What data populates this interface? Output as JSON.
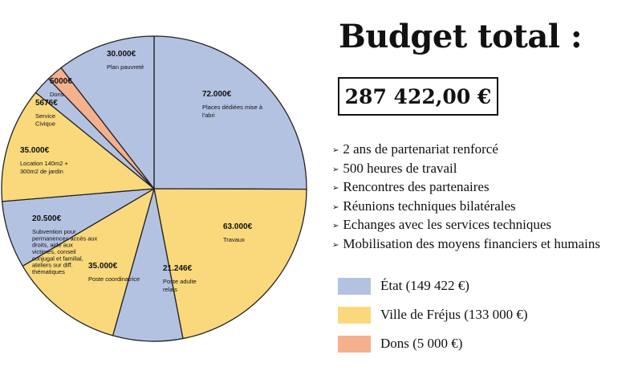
{
  "header": {
    "title": "Budget total :",
    "total": "287 422,00 €"
  },
  "bullets": [
    "2 ans de partenariat renforcé",
    "500 heures de travail",
    "Rencontres des partenaires",
    "Réunions techniques bilatérales",
    "Echanges avec les services techniques",
    "Mobilisation des moyens financiers et humains"
  ],
  "legend": [
    {
      "label": "État (149 422 €)",
      "color": "#b4c2e2"
    },
    {
      "label": "Ville de Fréjus (133 000 €)",
      "color": "#f9d97c"
    },
    {
      "label": "Dons (5 000 €)",
      "color": "#f5b08e"
    }
  ],
  "chart_data": {
    "type": "pie",
    "slices": [
      {
        "amount_label": "72.000€",
        "label": "Places dédiées mise à l'abri",
        "value": 72000,
        "funder": "État",
        "color": "#b4c2e2"
      },
      {
        "amount_label": "63.000€",
        "label": "Travaux",
        "value": 63000,
        "funder": "Ville de Fréjus",
        "color": "#f9d97c"
      },
      {
        "amount_label": "21.246€",
        "label": "Poste adulte relais",
        "value": 21246,
        "funder": "État",
        "color": "#b4c2e2"
      },
      {
        "amount_label": "35.000€",
        "label": "Poste coordinatrice",
        "value": 35000,
        "funder": "Ville de Fréjus",
        "color": "#f9d97c"
      },
      {
        "amount_label": "20.500€",
        "label": "Subvention pour permanences accès aux droits, aide aux victimes, conseil conjugal et familial, ateliers sur diff. thématiques",
        "value": 20500,
        "funder": "État",
        "color": "#b4c2e2"
      },
      {
        "amount_label": "35.000€",
        "label": "Location 140m2 + 300m2 de jardin",
        "value": 35000,
        "funder": "Ville de Fréjus",
        "color": "#f9d97c"
      },
      {
        "amount_label": "5676€",
        "label": "Service Civique",
        "value": 5676,
        "funder": "État",
        "color": "#b4c2e2"
      },
      {
        "amount_label": "5000€",
        "label": "Dons",
        "value": 5000,
        "funder": "Dons",
        "color": "#f5b08e"
      },
      {
        "amount_label": "30.000€",
        "label": "Plan pauvreté",
        "value": 30000,
        "funder": "État",
        "color": "#b4c2e2"
      }
    ]
  }
}
